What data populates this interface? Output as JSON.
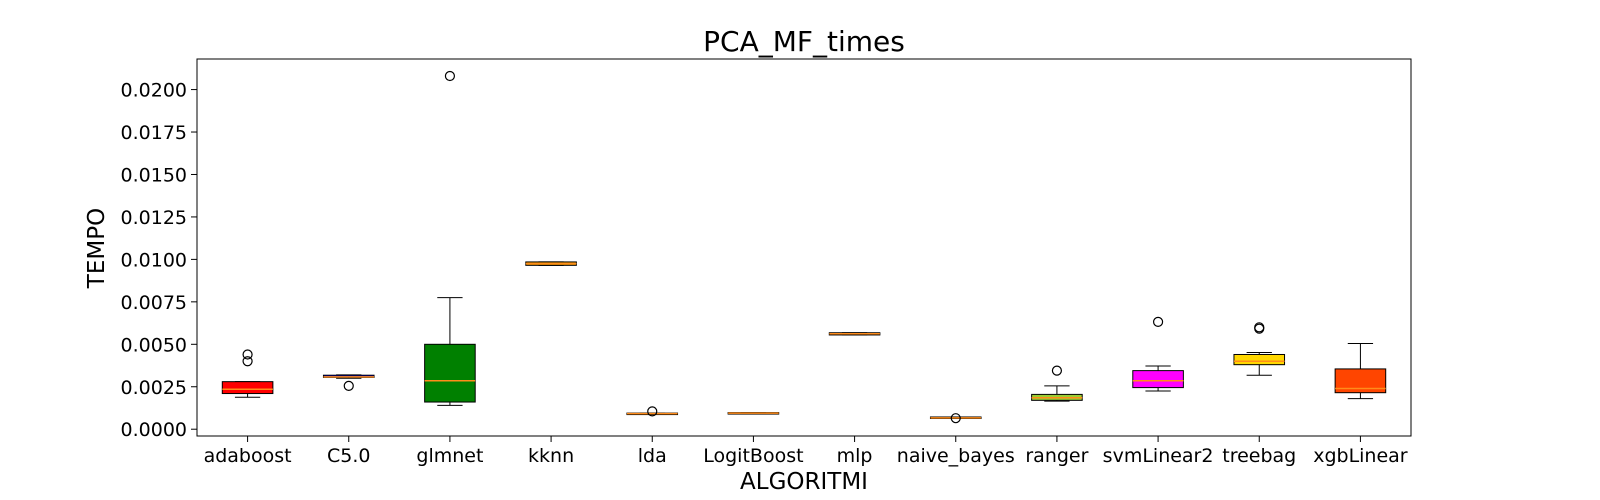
{
  "chart_data": {
    "type": "boxplot",
    "title": "PCA_MF_times",
    "xlabel": "ALGORITMI",
    "ylabel": "TEMPO",
    "ylim": [
      -0.0004,
      0.0218
    ],
    "yticks": [
      0.0,
      0.0025,
      0.005,
      0.0075,
      0.01,
      0.0125,
      0.015,
      0.0175,
      0.02
    ],
    "ytick_labels": [
      "0.0000",
      "0.0025",
      "0.0050",
      "0.0075",
      "0.0100",
      "0.0125",
      "0.0150",
      "0.0175",
      "0.0200"
    ],
    "grid": false,
    "median_color": "#ff8c1a",
    "categories": [
      "adaboost",
      "C5.0",
      "glmnet",
      "kknn",
      "lda",
      "LogitBoost",
      "mlp",
      "naive_bayes",
      "ranger",
      "svmLinear2",
      "treebag",
      "xgbLinear"
    ],
    "boxes": [
      {
        "category": "adaboost",
        "color": "#ff0000",
        "whislo": 0.00188,
        "q1": 0.0021,
        "med": 0.00235,
        "q3": 0.0028,
        "whishi": 0.0028,
        "fliers": [
          0.004,
          0.0044
        ]
      },
      {
        "category": "C5.0",
        "color": "#0000ff",
        "whislo": 0.003,
        "q1": 0.00305,
        "med": 0.00308,
        "q3": 0.00318,
        "whishi": 0.0032,
        "fliers": [
          0.00255
        ]
      },
      {
        "category": "glmnet",
        "color": "#008000",
        "whislo": 0.0014,
        "q1": 0.0016,
        "med": 0.00285,
        "q3": 0.005,
        "whishi": 0.00775,
        "fliers": [
          0.0208
        ]
      },
      {
        "category": "kknn",
        "color": "#ffa500",
        "whislo": 0.00965,
        "q1": 0.00965,
        "med": 0.00975,
        "q3": 0.00985,
        "whishi": 0.00985,
        "fliers": []
      },
      {
        "category": "lda",
        "color": "#ff8c00",
        "whislo": 0.00088,
        "q1": 0.00088,
        "med": 0.00092,
        "q3": 0.00095,
        "whishi": 0.00095,
        "fliers": [
          0.00105
        ]
      },
      {
        "category": "LogitBoost",
        "color": "#ff8c00",
        "whislo": 0.00092,
        "q1": 0.00092,
        "med": 0.00095,
        "q3": 0.00098,
        "whishi": 0.00098,
        "fliers": []
      },
      {
        "category": "mlp",
        "color": "#ff8c00",
        "whislo": 0.00555,
        "q1": 0.00555,
        "med": 0.00562,
        "q3": 0.00568,
        "whishi": 0.00568,
        "fliers": []
      },
      {
        "category": "naive_bayes",
        "color": "#ff8c00",
        "whislo": 0.00063,
        "q1": 0.00063,
        "med": 0.00067,
        "q3": 0.00072,
        "whishi": 0.00072,
        "fliers": [
          0.00065
        ]
      },
      {
        "category": "ranger",
        "color": "#9acd32",
        "whislo": 0.00165,
        "q1": 0.0017,
        "med": 0.00185,
        "q3": 0.00205,
        "whishi": 0.00255,
        "fliers": [
          0.00345
        ]
      },
      {
        "category": "svmLinear2",
        "color": "#ff00ff",
        "whislo": 0.00225,
        "q1": 0.00245,
        "med": 0.00285,
        "q3": 0.00345,
        "whishi": 0.00372,
        "fliers": [
          0.00632
        ]
      },
      {
        "category": "treebag",
        "color": "#ffd700",
        "whislo": 0.00318,
        "q1": 0.0038,
        "med": 0.004,
        "q3": 0.0044,
        "whishi": 0.00452,
        "fliers": [
          0.00592,
          0.006
        ]
      },
      {
        "category": "xgbLinear",
        "color": "#ff4500",
        "whislo": 0.0018,
        "q1": 0.00215,
        "med": 0.0024,
        "q3": 0.00355,
        "whishi": 0.00505,
        "fliers": []
      }
    ]
  }
}
